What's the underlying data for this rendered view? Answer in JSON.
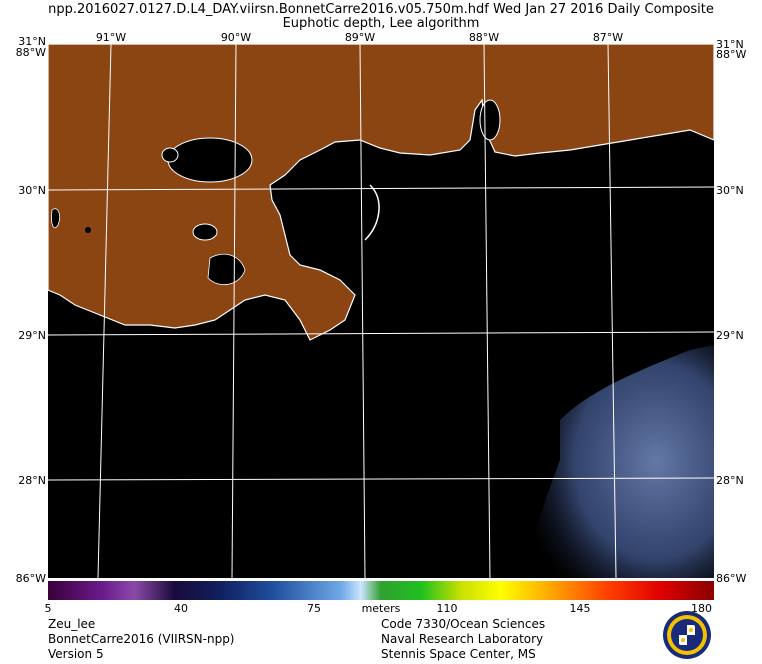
{
  "header": {
    "line1": "npp.2016027.0127.D.L4_DAY.viirsn.BonnetCarre2016.v05.750m.hdf    Wed Jan 27 2016 Daily Composite",
    "line2": "Euphotic depth, Lee algorithm"
  },
  "map": {
    "lon_labels_top": [
      "91°W",
      "90°W",
      "89°W",
      "88°W",
      "87°W"
    ],
    "lat_labels": [
      "30°N",
      "29°N",
      "28°N"
    ],
    "corner_top_left": "31°N",
    "corner_top_right": "31°N",
    "corner_mid_left": "88°W",
    "corner_mid_right": "88°W",
    "bottom_left": "86°W",
    "bottom_right": "86°W",
    "colors": {
      "land": "#8B4513",
      "water": "#000000",
      "grid": "#ffffff",
      "coast": "#ffffff",
      "bloom": "#4a5f8f"
    }
  },
  "colorbar": {
    "ticks": [
      "5",
      "40",
      "75",
      "110",
      "145",
      "180"
    ],
    "units": "meters",
    "min": 5,
    "max": 180
  },
  "footer": {
    "left": [
      "Zeu_lee",
      "BonnetCarre2016 (VIIRSN-npp)",
      "Version 5"
    ],
    "right": [
      "Code 7330/Ocean Sciences",
      "Naval Research Laboratory",
      "Stennis Space Center, MS"
    ],
    "seal_icon": "nrl-seal-icon"
  }
}
